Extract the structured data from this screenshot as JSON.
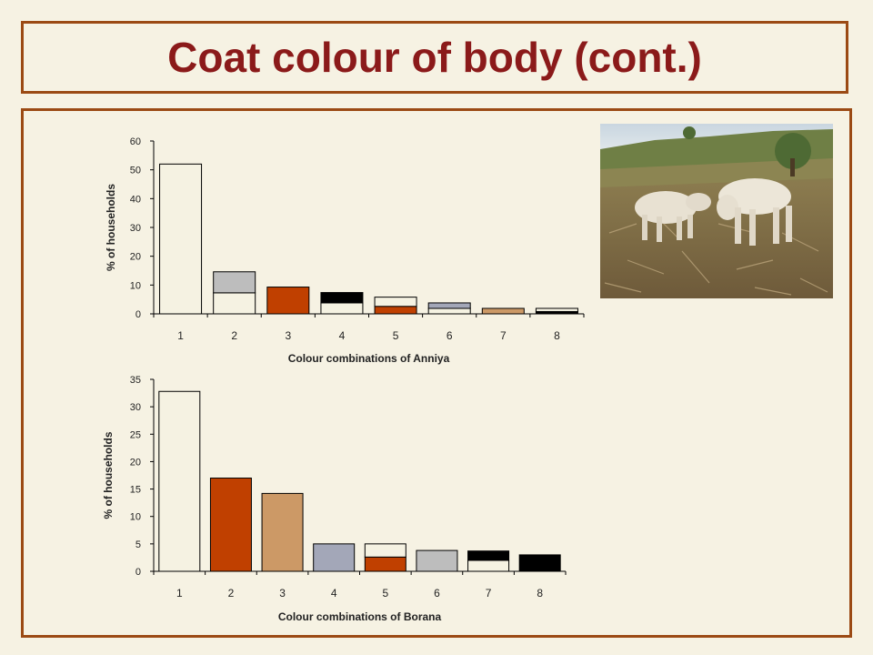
{
  "slide": {
    "title": "Coat colour of body (cont.)"
  },
  "colors": {
    "cream": "#f5f2e2",
    "grey": "#bdbdbd",
    "rust": "#c04000",
    "black": "#000000",
    "tan": "#cc9966",
    "slate": "#a3a7b8"
  },
  "chart_data": [
    {
      "type": "bar",
      "stacked": true,
      "title": "",
      "xlabel": "Colour combinations of Anniya",
      "ylabel": "% of households",
      "ylim": [
        0,
        60
      ],
      "yticks": [
        0,
        10,
        20,
        30,
        40,
        50,
        60
      ],
      "categories": [
        "1",
        "2",
        "3",
        "4",
        "5",
        "6",
        "7",
        "8"
      ],
      "bars": [
        {
          "segments": [
            {
              "value": 52,
              "color": "cream"
            }
          ]
        },
        {
          "segments": [
            {
              "value": 7.3,
              "color": "cream"
            },
            {
              "value": 7.3,
              "color": "grey"
            }
          ]
        },
        {
          "segments": [
            {
              "value": 9.3,
              "color": "rust"
            }
          ]
        },
        {
          "segments": [
            {
              "value": 3.8,
              "color": "cream"
            },
            {
              "value": 3.6,
              "color": "black"
            }
          ]
        },
        {
          "segments": [
            {
              "value": 2.6,
              "color": "rust"
            },
            {
              "value": 3.2,
              "color": "cream"
            }
          ]
        },
        {
          "segments": [
            {
              "value": 1.9,
              "color": "cream"
            },
            {
              "value": 1.9,
              "color": "slate"
            }
          ]
        },
        {
          "segments": [
            {
              "value": 1.9,
              "color": "tan"
            }
          ]
        },
        {
          "segments": [
            {
              "value": 0.8,
              "color": "black"
            },
            {
              "value": 1.1,
              "color": "cream"
            }
          ]
        }
      ]
    },
    {
      "type": "bar",
      "stacked": true,
      "title": "",
      "xlabel": "Colour combinations of Borana",
      "ylabel": "% of households",
      "ylim": [
        0,
        35
      ],
      "yticks": [
        0,
        5,
        10,
        15,
        20,
        25,
        30,
        35
      ],
      "categories": [
        "1",
        "2",
        "3",
        "4",
        "5",
        "6",
        "7",
        "8"
      ],
      "bars": [
        {
          "segments": [
            {
              "value": 32.8,
              "color": "cream"
            }
          ]
        },
        {
          "segments": [
            {
              "value": 17,
              "color": "rust"
            }
          ]
        },
        {
          "segments": [
            {
              "value": 14.2,
              "color": "tan"
            }
          ]
        },
        {
          "segments": [
            {
              "value": 5,
              "color": "slate"
            }
          ]
        },
        {
          "segments": [
            {
              "value": 2.6,
              "color": "rust"
            },
            {
              "value": 2.4,
              "color": "cream"
            }
          ]
        },
        {
          "segments": [
            {
              "value": 3.8,
              "color": "grey"
            }
          ]
        },
        {
          "segments": [
            {
              "value": 2,
              "color": "cream"
            },
            {
              "value": 1.7,
              "color": "black"
            }
          ]
        },
        {
          "segments": [
            {
              "value": 3,
              "color": "black"
            }
          ]
        }
      ]
    }
  ],
  "photo": {
    "subject": "cattle-photo"
  }
}
